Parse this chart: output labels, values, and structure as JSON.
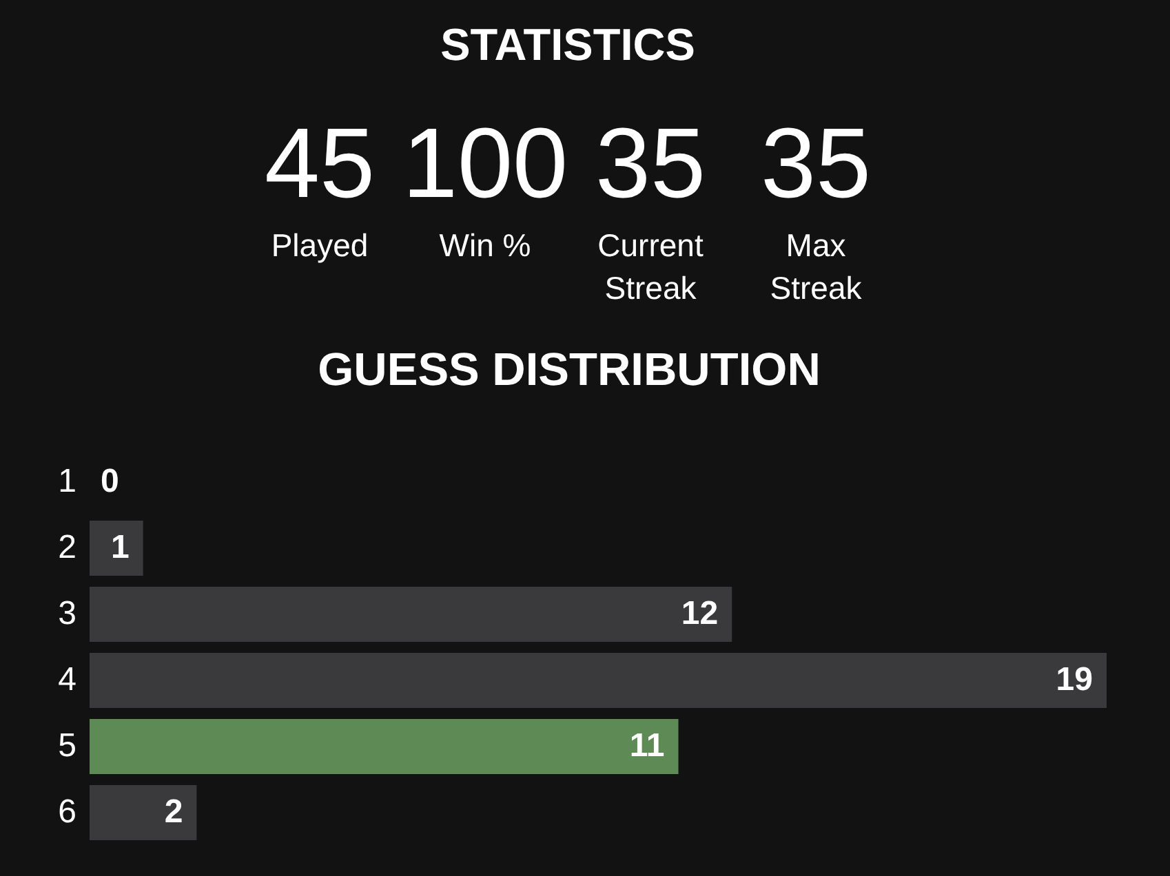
{
  "chart_data": [
    {
      "type": "other",
      "title": "STATISTICS",
      "categories": [
        "Played",
        "Win %",
        "Current Streak",
        "Max Streak"
      ],
      "values": [
        45,
        100,
        35,
        35
      ],
      "data_labels": true
    },
    {
      "type": "bar",
      "orientation": "horizontal",
      "title": "GUESS DISTRIBUTION",
      "categories": [
        "1",
        "2",
        "3",
        "4",
        "5",
        "6"
      ],
      "values": [
        0,
        1,
        12,
        19,
        11,
        2
      ],
      "colors": [
        "#3a3a3c",
        "#3a3a3c",
        "#3a3a3c",
        "#3a3a3c",
        "#5e8b55",
        "#3a3a3c"
      ],
      "data_labels": true
    }
  ]
}
